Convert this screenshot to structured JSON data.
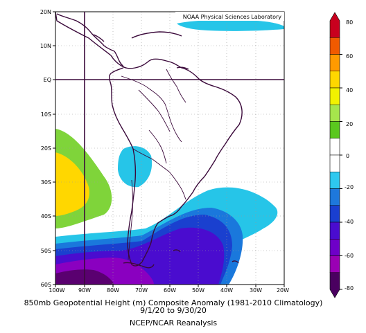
{
  "credit": "NOAA Physical Sciences Laboratory",
  "caption": {
    "line1": "850mb Geopotential Height (m) Composite Anomaly (1981-2010 Climatology)",
    "line2": "9/1/20  to 9/30/20",
    "line3": "NCEP/NCAR Reanalysis"
  },
  "axes": {
    "lat_labels": [
      "20N",
      "10N",
      "EQ",
      "10S",
      "20S",
      "30S",
      "40S",
      "50S",
      "60S"
    ],
    "lon_labels": [
      "100W",
      "90W",
      "80W",
      "70W",
      "60W",
      "50W",
      "40W",
      "30W",
      "20W"
    ]
  },
  "colorbar": {
    "labels": [
      "80",
      "60",
      "40",
      "20",
      "0",
      "-20",
      "-40",
      "-60",
      "-80"
    ],
    "colors": [
      "#c8001e",
      "#f05a00",
      "#ff9a00",
      "#ffd700",
      "#f2f200",
      "#a6e64c",
      "#5ac81e",
      "#ffffff",
      "#ffffff",
      "#2ec8ef",
      "#1e78dc",
      "#1a3fd0",
      "#4a0ccf",
      "#6e00c8",
      "#9a00b4",
      "#4a0060"
    ]
  }
}
